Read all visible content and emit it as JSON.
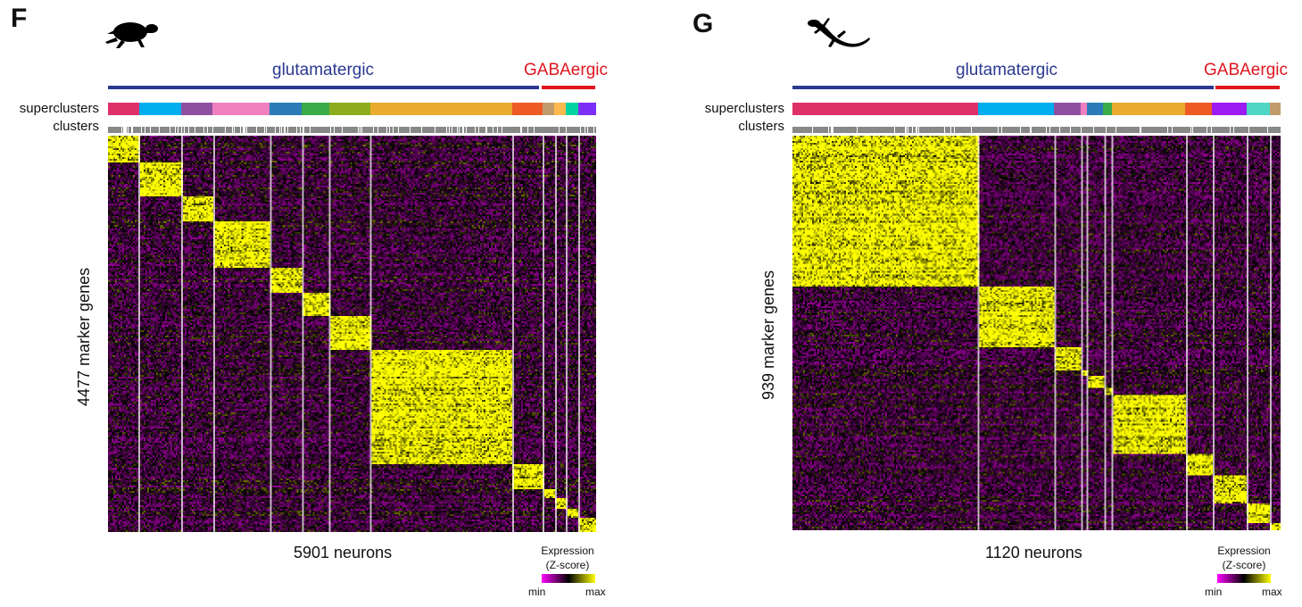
{
  "panels": [
    {
      "letter": "F",
      "animal_icon": "turtle-silhouette-icon",
      "class_labels": {
        "glutamatergic": "glutamatergic",
        "gabaergic": "GABAergic"
      },
      "class_colors": {
        "glutamatergic": "#2b3990",
        "gabaergic": "#e0161e"
      },
      "row_labels": {
        "superclusters": "superclusters",
        "clusters": "clusters"
      },
      "ylabel": "4477 marker genes",
      "xlabel": "5901 neurons",
      "legend": {
        "title_line1": "Expression",
        "title_line2": "(Z-score)",
        "min": "min",
        "max": "max"
      }
    },
    {
      "letter": "G",
      "animal_icon": "lizard-silhouette-icon",
      "class_labels": {
        "glutamatergic": "glutamatergic",
        "gabaergic": "GABAergic"
      },
      "class_colors": {
        "glutamatergic": "#2b3990",
        "gabaergic": "#e0161e"
      },
      "row_labels": {
        "superclusters": "superclusters",
        "clusters": "clusters"
      },
      "ylabel": "939 marker genes",
      "xlabel": "1120 neurons",
      "legend": {
        "title_line1": "Expression",
        "title_line2": "(Z-score)",
        "min": "min",
        "max": "max"
      }
    }
  ],
  "chart_data": [
    {
      "type": "heatmap",
      "title": "",
      "n_genes": 4477,
      "n_neurons": 5901,
      "colormap": [
        "#ff00ff",
        "#000000",
        "#ffff00"
      ],
      "colorscale_labels": [
        "min",
        "max"
      ],
      "glutamatergic_fraction": 0.885,
      "supercluster_colors": [
        "#e0306a",
        "#00aeef",
        "#8e4fa0",
        "#f07fbf",
        "#2b7bb9",
        "#3aab49",
        "#8cac1e",
        "#e9aa2d",
        "#ee5a24",
        "#c29b6c",
        "#ffb84d",
        "#00d4a0",
        "#7b2ff7"
      ],
      "supercluster_fractions": [
        0.063,
        0.086,
        0.064,
        0.116,
        0.064,
        0.056,
        0.085,
        0.287,
        0.063,
        0.023,
        0.024,
        0.024,
        0.037
      ]
    },
    {
      "type": "heatmap",
      "title": "",
      "n_genes": 939,
      "n_neurons": 1120,
      "colormap": [
        "#ff00ff",
        "#000000",
        "#ffff00"
      ],
      "colorscale_labels": [
        "min",
        "max"
      ],
      "glutamatergic_fraction": 0.864,
      "supercluster_colors": [
        "#e0306a",
        "#00aeef",
        "#8e4fa0",
        "#f07fbf",
        "#2b7bb9",
        "#3aab49",
        "#e9aa2d",
        "#ee5a24",
        "#9b1bf2",
        "#4fd6c4",
        "#c29b6c"
      ],
      "supercluster_fractions": [
        0.381,
        0.155,
        0.055,
        0.013,
        0.033,
        0.018,
        0.15,
        0.055,
        0.07,
        0.048,
        0.022
      ]
    }
  ]
}
